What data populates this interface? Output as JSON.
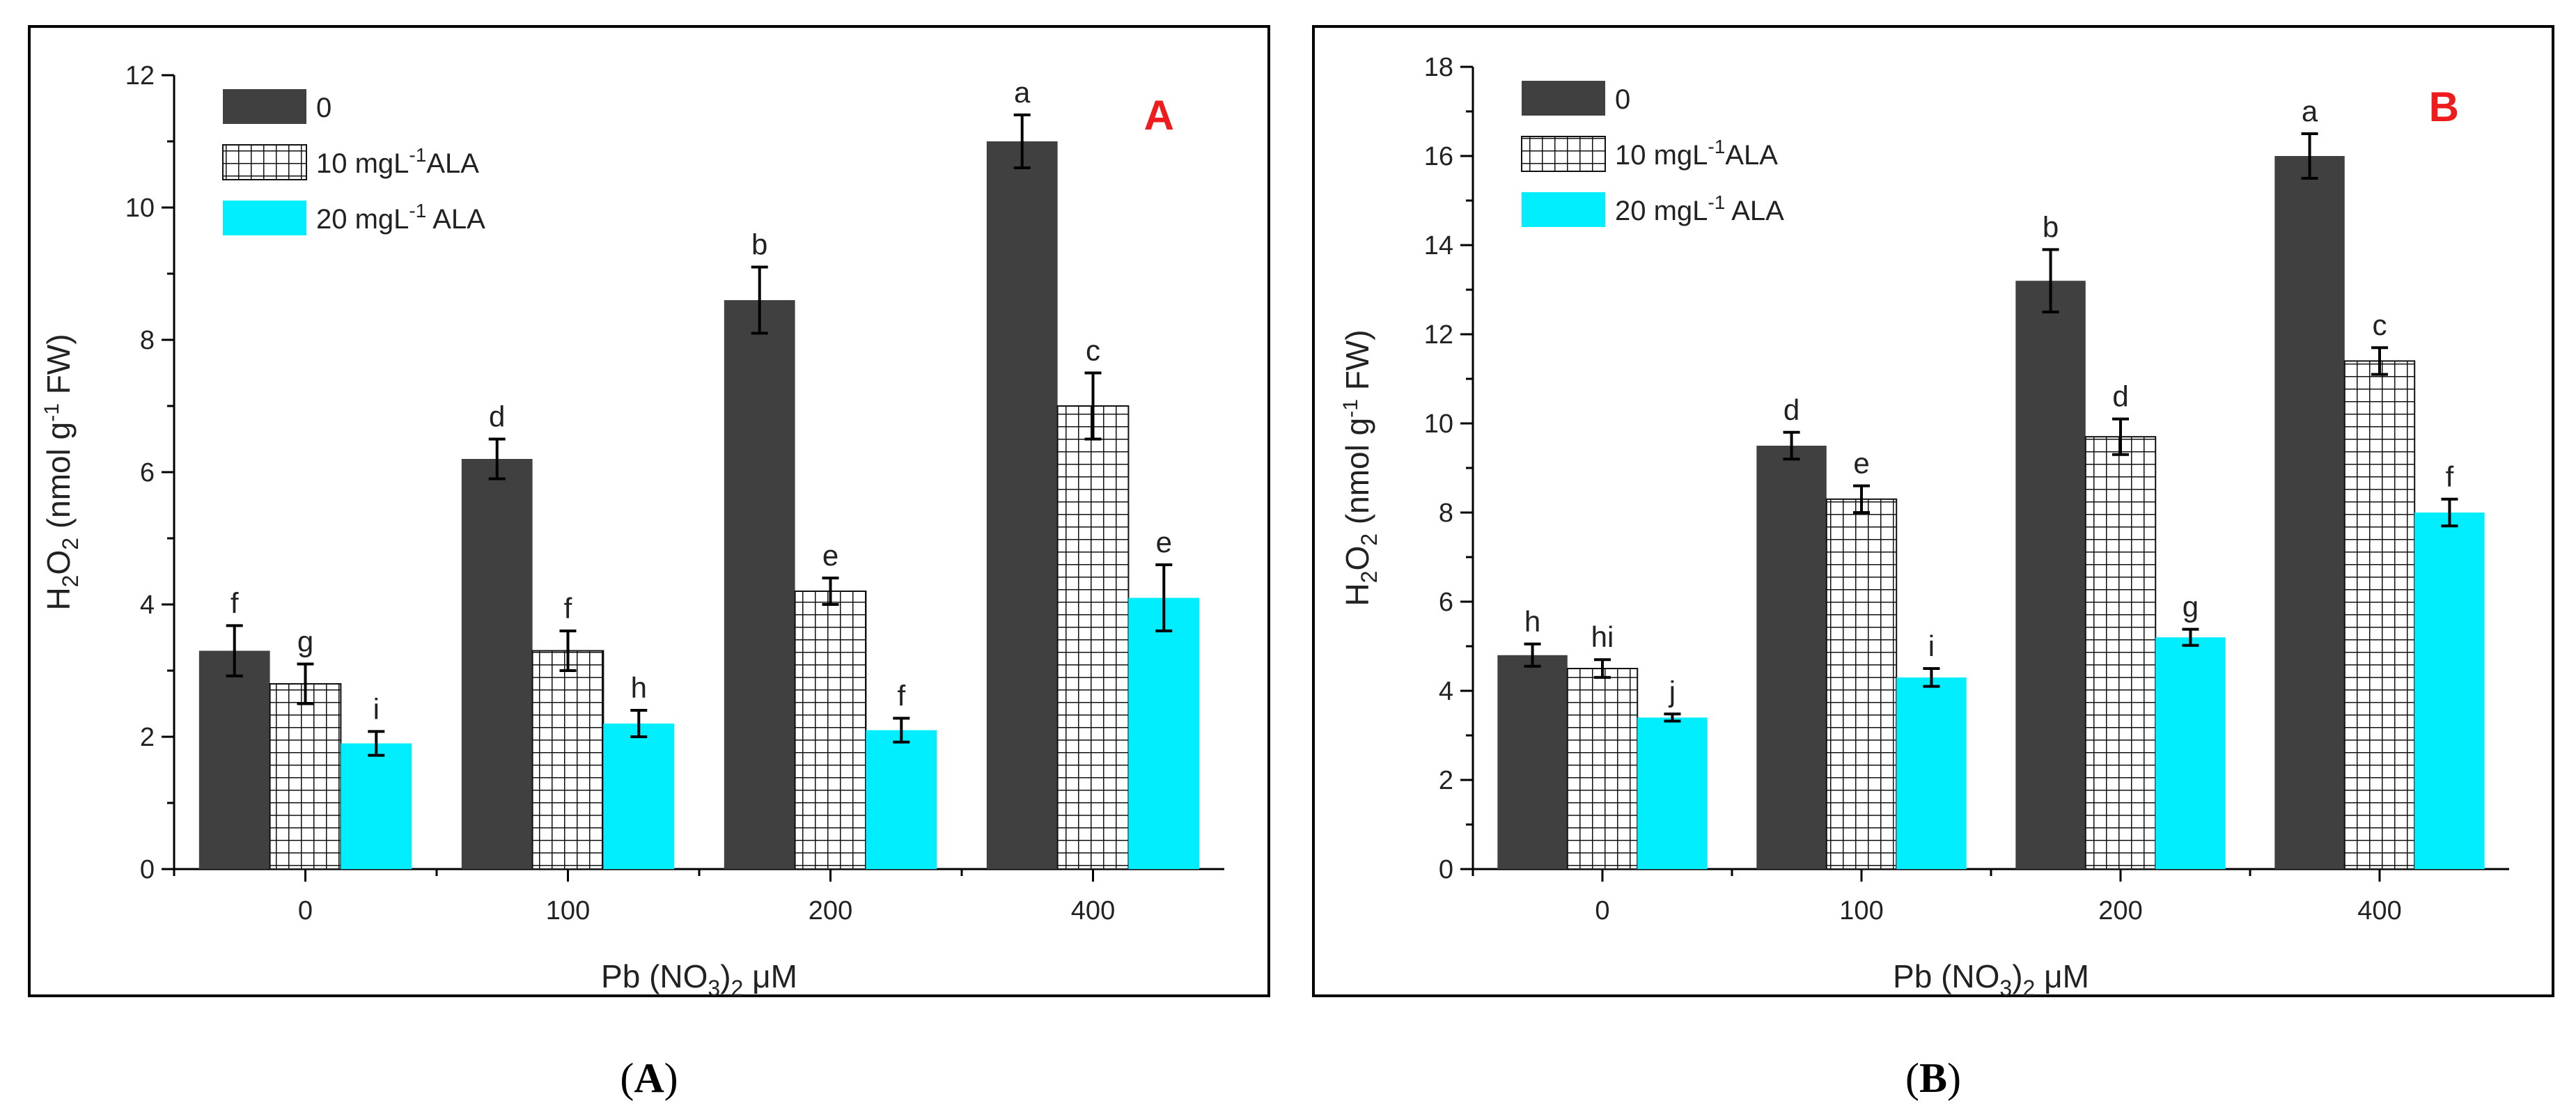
{
  "chart_data": [
    {
      "type": "bar",
      "panel_label": "A",
      "caption": {
        "open": "(",
        "letter": "A",
        "close": ")"
      },
      "categories": [
        "0",
        "100",
        "200",
        "400"
      ],
      "xlabel": {
        "main": "Pb (NO",
        "sub": "3",
        "close": ")",
        "sub2": "2",
        "unit": " μM"
      },
      "ylabel": {
        "pre": "H",
        "sub1": "2",
        "mid": "O",
        "sub2": "2",
        "paren": " (nmol g",
        "sup": "-1",
        "tail": " FW)"
      },
      "ylim": [
        0,
        12
      ],
      "yticks": [
        "0",
        "2",
        "4",
        "6",
        "8",
        "10",
        "12"
      ],
      "legend_position": "top-left",
      "series": [
        {
          "name": "0",
          "legend_parts": [
            "0",
            "",
            ""
          ],
          "color": "#404040",
          "pattern": "solid",
          "values": [
            3.3,
            6.2,
            8.6,
            11.0
          ],
          "errors": [
            0.38,
            0.3,
            0.5,
            0.4
          ],
          "letters": [
            "f",
            "d",
            "b",
            "a"
          ]
        },
        {
          "name": "10 mgL-1ALA",
          "legend_parts": [
            "10 mgL",
            "-1",
            "ALA"
          ],
          "color": "#ffffff",
          "pattern": "grid",
          "values": [
            2.8,
            3.3,
            4.2,
            7.0
          ],
          "errors": [
            0.3,
            0.3,
            0.2,
            0.5
          ],
          "letters": [
            "g",
            "f",
            "e",
            "c"
          ]
        },
        {
          "name": "20 mgL-1 ALA",
          "legend_parts": [
            "20 mgL",
            "-1",
            " ALA"
          ],
          "color": "#00eeff",
          "pattern": "solid",
          "values": [
            1.9,
            2.2,
            2.1,
            4.1
          ],
          "errors": [
            0.18,
            0.2,
            0.18,
            0.5
          ],
          "letters": [
            "i",
            "h",
            "f",
            "e"
          ]
        }
      ]
    },
    {
      "type": "bar",
      "panel_label": "B",
      "caption": {
        "open": "(",
        "letter": "B",
        "close": ")"
      },
      "categories": [
        "0",
        "100",
        "200",
        "400"
      ],
      "xlabel": {
        "main": "Pb (NO",
        "sub": "3",
        "close": ")",
        "sub2": "2",
        "unit": " μM"
      },
      "ylabel": {
        "pre": "H",
        "sub1": "2",
        "mid": "O",
        "sub2": "2",
        "paren": " (nmol g",
        "sup": "-1",
        "tail": " FW)"
      },
      "ylim": [
        0,
        18
      ],
      "yticks": [
        "0",
        "2",
        "4",
        "6",
        "8",
        "10",
        "12",
        "14",
        "16",
        "18"
      ],
      "legend_position": "top-left",
      "series": [
        {
          "name": "0",
          "legend_parts": [
            "0",
            "",
            ""
          ],
          "color": "#404040",
          "pattern": "solid",
          "values": [
            4.8,
            9.5,
            13.2,
            16.0
          ],
          "errors": [
            0.25,
            0.3,
            0.7,
            0.5
          ],
          "letters": [
            "h",
            "d",
            "b",
            "a"
          ]
        },
        {
          "name": "10 mgL-1ALA",
          "legend_parts": [
            "10 mgL",
            "-1",
            "ALA"
          ],
          "color": "#ffffff",
          "pattern": "grid",
          "values": [
            4.5,
            8.3,
            9.7,
            11.4
          ],
          "errors": [
            0.2,
            0.3,
            0.4,
            0.3
          ],
          "letters": [
            "hi",
            "e",
            "d",
            "c"
          ]
        },
        {
          "name": "20 mgL-1 ALA",
          "legend_parts": [
            "20 mgL",
            "-1",
            " ALA"
          ],
          "color": "#00eeff",
          "pattern": "solid",
          "values": [
            3.4,
            4.3,
            5.2,
            8.0
          ],
          "errors": [
            0.08,
            0.2,
            0.18,
            0.3
          ],
          "letters": [
            "j",
            "i",
            "g",
            "f"
          ]
        }
      ]
    }
  ]
}
